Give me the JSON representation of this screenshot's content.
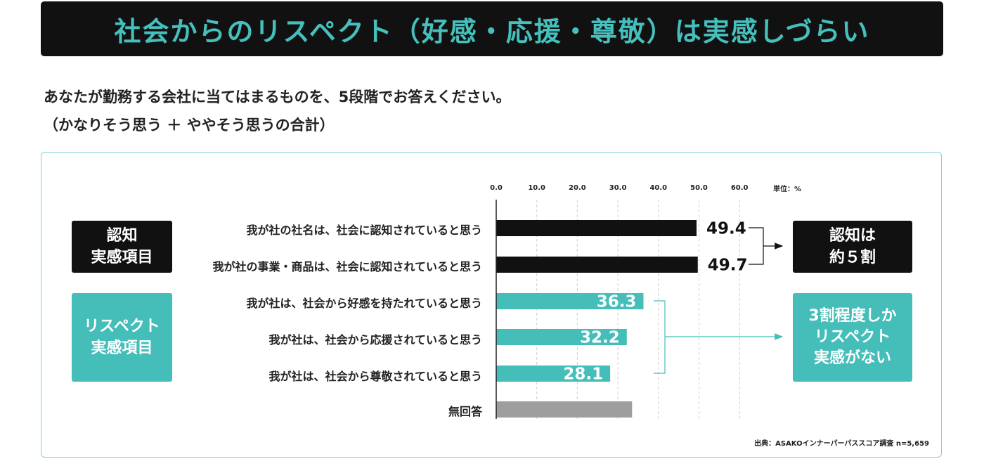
{
  "title": "社会からのリスペクト（好感・応援・尊敬）は実感しづらい",
  "question": {
    "line1": "あなたが勤務する会社に当てはまるものを、5段階でお答えください。",
    "line2": "（かなりそう思う ＋ ややそう思うの合計）"
  },
  "left_boxes": {
    "recognition": [
      "認知",
      "実感項目"
    ],
    "respect": [
      "リスペクト",
      "実感項目"
    ]
  },
  "right_boxes": {
    "recognition": [
      "認知は",
      "約５割"
    ],
    "respect": [
      "3割程度しか",
      "リスペクト",
      "実感がない"
    ]
  },
  "unit_label": "単位：%",
  "source": "出典：ASAKOインナーパーパススコア調査 n=5,659",
  "colors": {
    "title_bg": "#111111",
    "accent": "#45bdb8",
    "recognition_bar": "#111111",
    "respect_bar": "#45bdb8",
    "no_answer_bar": "#9e9e9e"
  },
  "chart_data": {
    "type": "bar",
    "orientation": "horizontal",
    "xlim": [
      0,
      60
    ],
    "ticks": [
      "0.0",
      "10.0",
      "20.0",
      "30.0",
      "40.0",
      "50.0",
      "60.0"
    ],
    "grid": "vertical dashed",
    "categories": [
      "我が社の社名は、社会に認知されていると思う",
      "我が社の事業・商品は、社会に認知されていると思う",
      "我が社は、社会から好感を持たれていると思う",
      "我が社は、社会から応援されていると思う",
      "我が社は、社会から尊敬されていると思う",
      "無回答"
    ],
    "values": [
      49.4,
      49.7,
      36.3,
      32.2,
      28.1,
      33.5
    ],
    "value_labels": [
      "49.4",
      "49.7",
      "36.3",
      "32.2",
      "28.1",
      ""
    ],
    "groups": [
      "recognition",
      "recognition",
      "respect",
      "respect",
      "respect",
      "no_answer"
    ]
  }
}
